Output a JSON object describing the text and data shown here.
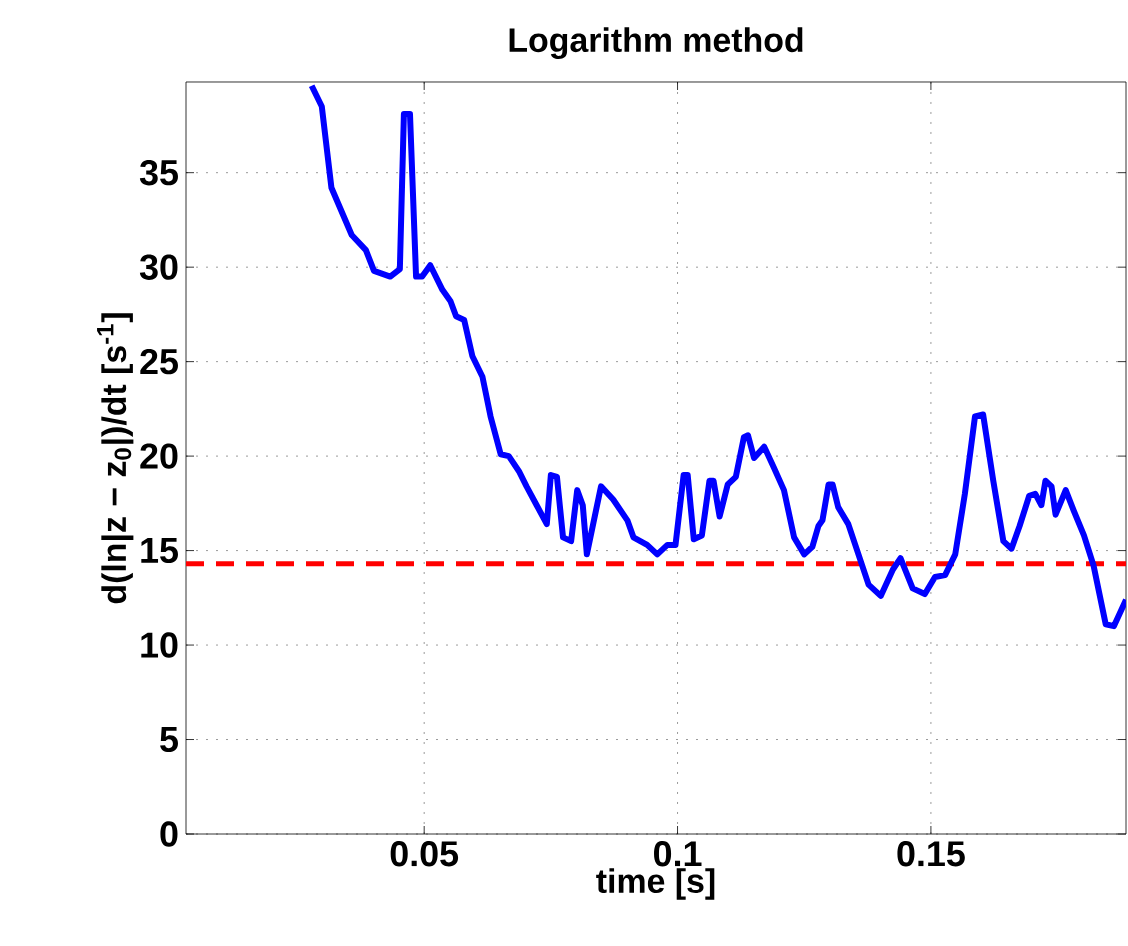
{
  "chart_data": {
    "type": "line",
    "title": "Logarithm method",
    "xlabel": "time [s]",
    "ylabel": "d(ln|z − z$_{0}$|)/dt [s$^{-1}$]",
    "xlim": [
      0.003,
      0.1885
    ],
    "ylim": [
      0,
      39.8
    ],
    "xticks": [
      0.05,
      0.1,
      0.15
    ],
    "yticks": [
      0,
      5,
      10,
      15,
      20,
      25,
      30,
      35
    ],
    "grid": true,
    "line_style": "solid",
    "marker": "none",
    "x": [
      0.0278,
      0.0298,
      0.0317,
      0.0357,
      0.0385,
      0.0401,
      0.0433,
      0.0452,
      0.046,
      0.0472,
      0.0484,
      0.0496,
      0.0512,
      0.0536,
      0.0552,
      0.0563,
      0.0579,
      0.0595,
      0.0615,
      0.0631,
      0.0651,
      0.0667,
      0.0687,
      0.0702,
      0.0722,
      0.0742,
      0.075,
      0.0762,
      0.0774,
      0.079,
      0.0802,
      0.0813,
      0.0821,
      0.0849,
      0.0873,
      0.0901,
      0.0913,
      0.094,
      0.096,
      0.098,
      0.0996,
      0.1012,
      0.102,
      0.1032,
      0.1048,
      0.1063,
      0.1071,
      0.1083,
      0.1099,
      0.1115,
      0.1131,
      0.1139,
      0.1151,
      0.1171,
      0.119,
      0.121,
      0.123,
      0.125,
      0.1266,
      0.1278,
      0.1286,
      0.1298,
      0.1306,
      0.1317,
      0.1337,
      0.1357,
      0.1377,
      0.1401,
      0.1425,
      0.144,
      0.1464,
      0.1488,
      0.1508,
      0.1528,
      0.1548,
      0.1567,
      0.1587,
      0.1603,
      0.1623,
      0.1643,
      0.1659,
      0.1675,
      0.1694,
      0.1706,
      0.1718,
      0.1726,
      0.1738,
      0.1746,
      0.1766,
      0.1782,
      0.1802,
      0.1821,
      0.1845,
      0.1861,
      0.1885
    ],
    "series": [
      {
        "color": "#0000ff",
        "values": [
          39.6,
          38.5,
          34.2,
          31.7,
          30.9,
          29.8,
          29.5,
          29.9,
          38.1,
          38.1,
          29.5,
          29.5,
          30.1,
          28.8,
          28.2,
          27.4,
          27.2,
          25.3,
          24.2,
          22.1,
          20.1,
          20.0,
          19.2,
          18.4,
          17.4,
          16.4,
          19.0,
          18.9,
          15.7,
          15.5,
          18.2,
          17.4,
          14.8,
          18.4,
          17.7,
          16.6,
          15.7,
          15.3,
          14.8,
          15.3,
          15.3,
          19.0,
          19.0,
          15.6,
          15.8,
          18.7,
          18.7,
          16.8,
          18.5,
          18.9,
          21.0,
          21.1,
          19.9,
          20.5,
          19.4,
          18.2,
          15.7,
          14.8,
          15.2,
          16.3,
          16.6,
          18.5,
          18.5,
          17.3,
          16.4,
          14.8,
          13.2,
          12.6,
          14.0,
          14.6,
          13.0,
          12.7,
          13.6,
          13.7,
          14.8,
          18.0,
          22.1,
          22.2,
          18.7,
          15.5,
          15.1,
          16.3,
          17.9,
          18.0,
          17.4,
          18.7,
          18.4,
          16.9,
          18.2,
          17.1,
          15.8,
          14.2,
          11.1,
          11.0,
          12.4
        ]
      }
    ],
    "ref_lines": [
      {
        "axis": "y",
        "value": 14.3,
        "color": "#ff0000",
        "line_style": "dashed"
      }
    ]
  }
}
